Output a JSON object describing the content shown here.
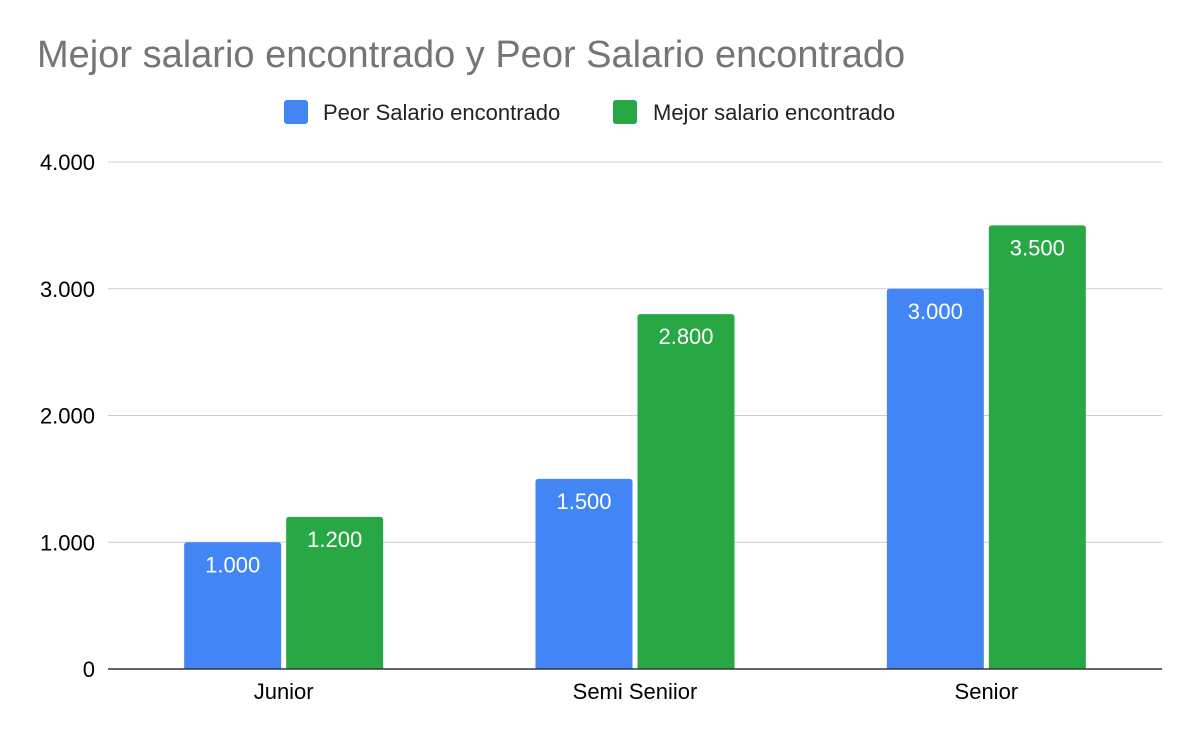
{
  "chart_data": {
    "type": "bar",
    "title": "Mejor salario encontrado y Peor Salario encontrado",
    "xlabel": "",
    "ylabel": "",
    "categories": [
      "Junior",
      "Semi Seniior",
      "Senior"
    ],
    "series": [
      {
        "name": "Peor Salario encontrado",
        "color": "#4285F4",
        "values": [
          1000,
          1500,
          3000
        ],
        "labels": [
          "1.000",
          "1.500",
          "3.000"
        ]
      },
      {
        "name": "Mejor salario encontrado",
        "color": "#28A745",
        "values": [
          1200,
          2800,
          3500
        ],
        "labels": [
          "1.200",
          "2.800",
          "3.500"
        ]
      }
    ],
    "ylim": [
      0,
      4000
    ],
    "yticks": [
      0,
      1000,
      2000,
      3000,
      4000
    ],
    "ytick_labels": [
      "0",
      "1.000",
      "2.000",
      "3.000",
      "4.000"
    ],
    "grid": true,
    "legend_position": "top"
  }
}
